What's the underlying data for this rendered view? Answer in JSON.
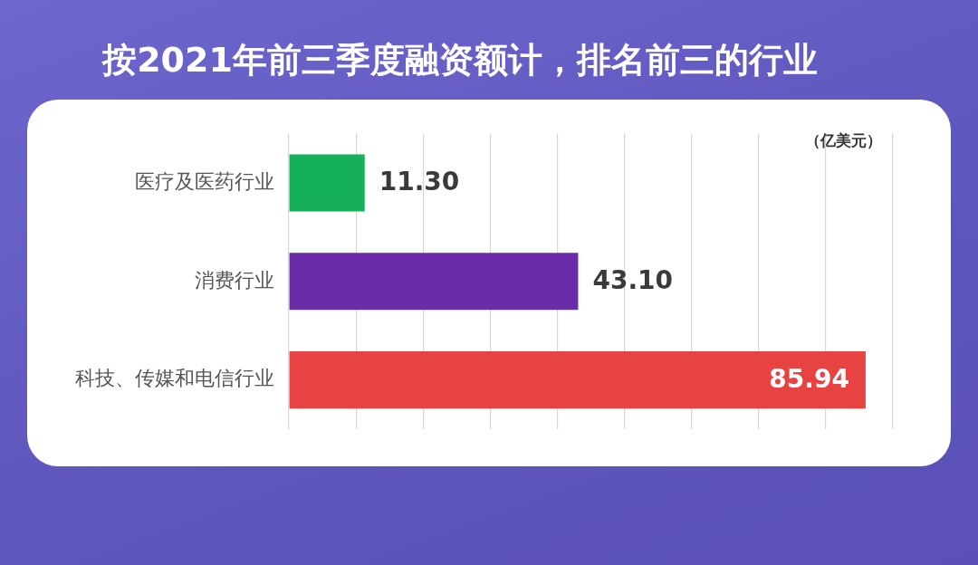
{
  "chart_data": {
    "type": "bar",
    "orientation": "horizontal",
    "title": "按2021年前三季度融资额计，排名前三的行业",
    "categories": [
      "医疗及医药行业",
      "消费行业",
      "科技、传媒和电信行业"
    ],
    "values": [
      11.3,
      43.1,
      85.94
    ],
    "colors": [
      "#17b05a",
      "#6a2ca8",
      "#e84343"
    ],
    "value_labels": [
      "11.30",
      "43.10",
      "85.94"
    ],
    "xlim": [
      0,
      90
    ],
    "xticks": [
      {
        "value": 0,
        "label": null
      },
      {
        "value": 10,
        "label": null
      },
      {
        "value": 20,
        "label": null
      },
      {
        "value": 30,
        "label": null
      },
      {
        "value": 40,
        "label": null
      },
      {
        "value": 50,
        "label": null
      },
      {
        "value": 60,
        "label": null
      },
      {
        "value": 70,
        "label": null
      },
      {
        "value": 80,
        "label": null
      },
      {
        "value": 90,
        "label": null
      }
    ],
    "grid": "x",
    "tick_labels": "y",
    "annotations": [
      "（亿美元）"
    ]
  }
}
